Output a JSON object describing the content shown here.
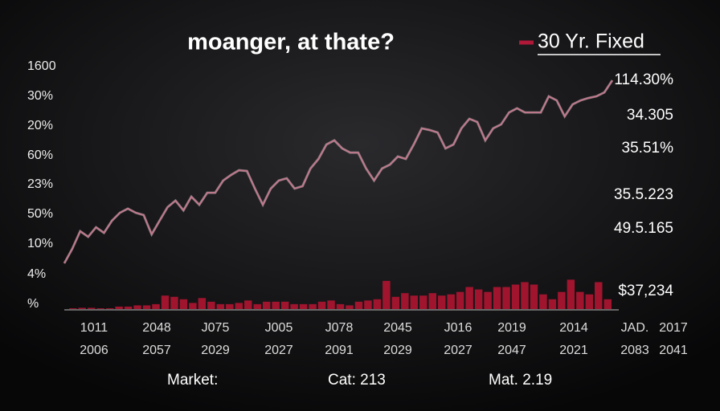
{
  "chart_data": {
    "type": "line",
    "title": "moanger, at thate?",
    "legend": "30 Yr. Fixed",
    "y_labels": [
      "1600",
      "30%",
      "20%",
      "60%",
      "23%",
      "50%",
      "10%",
      "4%",
      "%"
    ],
    "x_labels_top": [
      "1011",
      "2048",
      "J075",
      "J005",
      "J078",
      "2045",
      "J016",
      "2019",
      "2014",
      "JAD.",
      "2017"
    ],
    "x_labels_bottom": [
      "2006",
      "2057",
      "2029",
      "2027",
      "2091",
      "2029",
      "2027",
      "2047",
      "2021",
      "2083",
      "2041"
    ],
    "annotations": [
      "114.30%",
      "34.305",
      "35.51%",
      "35.5.223",
      "49.5.165",
      "$37,234"
    ],
    "footer": [
      "Market:",
      "Cat: 213",
      "Mat. 2.19"
    ],
    "ylim": [
      0,
      100
    ],
    "series": [
      {
        "name": "30 Yr. Fixed",
        "color": "#c0788c",
        "values": [
          18.7,
          24.6,
          31.8,
          29.5,
          33.4,
          31.1,
          36.1,
          39.3,
          41,
          39.3,
          38.4,
          30.5,
          36.1,
          41.6,
          44.3,
          40.3,
          45.9,
          42.6,
          47.5,
          47.5,
          52.5,
          54.8,
          56.7,
          56.4,
          49.2,
          42.6,
          49.2,
          52.5,
          53.4,
          49.2,
          50.2,
          57.4,
          61.3,
          67.2,
          68.9,
          65.6,
          63.9,
          63.9,
          57.4,
          52.5,
          57.4,
          59,
          62.3,
          61.3,
          67.2,
          73.8,
          73.1,
          72.1,
          65.6,
          67.2,
          73.8,
          77.7,
          76.4,
          68.9,
          73.8,
          75.4,
          80.3,
          82,
          80.3,
          80.3,
          80.3,
          86.9,
          85.2,
          78.7,
          83.6,
          85.2,
          86.2,
          86.9,
          88.5,
          93.4
        ]
      }
    ],
    "volume": {
      "color": "#a0142e",
      "values": [
        0.3,
        0.5,
        0.5,
        0.3,
        0.3,
        1,
        1,
        1.5,
        1.5,
        2,
        5.5,
        5,
        4,
        2.5,
        4.5,
        3,
        2,
        2,
        2.5,
        3.5,
        2,
        3,
        3,
        3,
        2,
        2,
        2,
        3,
        3.5,
        2,
        1.5,
        3,
        3.5,
        4,
        11.5,
        5,
        6.5,
        5.5,
        5.5,
        6.5,
        5.5,
        6,
        7,
        9,
        8,
        7,
        9,
        9,
        10,
        11,
        10,
        6,
        4,
        7,
        12,
        7,
        6,
        11,
        4
      ]
    }
  }
}
